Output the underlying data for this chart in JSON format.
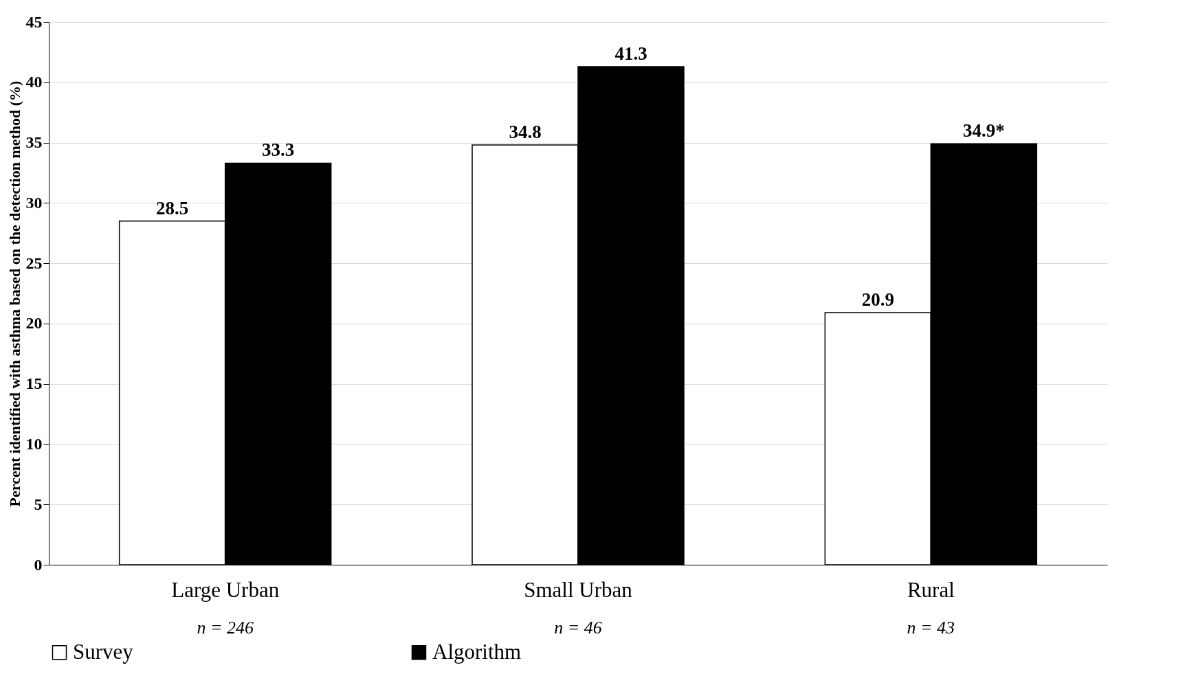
{
  "chart_data": {
    "type": "bar",
    "ylabel": "Percent identified with asthma based on the detection method (%)",
    "categories": [
      "Large Urban",
      "Small Urban",
      "Rural"
    ],
    "series": [
      {
        "name": "Survey",
        "color": "#ffffff",
        "values": [
          28.5,
          34.8,
          20.9
        ],
        "value_labels": [
          "28.5",
          "34.8",
          "20.9"
        ]
      },
      {
        "name": "Algorithm",
        "color": "#000000",
        "values": [
          33.3,
          41.3,
          34.9
        ],
        "value_labels": [
          "33.3",
          "41.3",
          "34.9*"
        ]
      }
    ],
    "annotations": [
      "n = 246",
      "n = 46",
      "n = 43"
    ],
    "ylim": [
      0,
      45
    ],
    "yticks": [
      0,
      5,
      10,
      15,
      20,
      25,
      30,
      35,
      40,
      45
    ],
    "grid": "y",
    "legend": "bottom"
  }
}
